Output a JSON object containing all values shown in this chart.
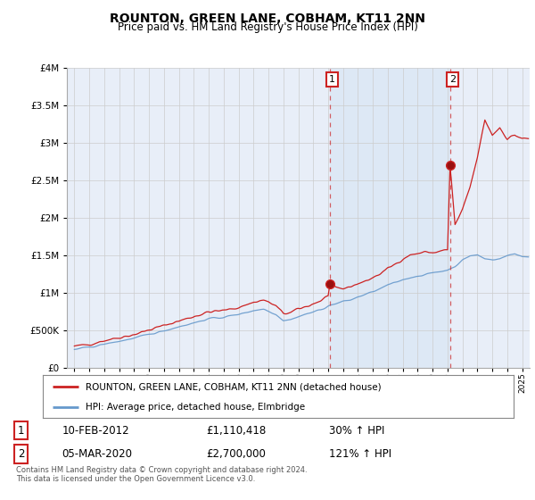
{
  "title": "ROUNTON, GREEN LANE, COBHAM, KT11 2NN",
  "subtitle": "Price paid vs. HM Land Registry's House Price Index (HPI)",
  "red_label": "ROUNTON, GREEN LANE, COBHAM, KT11 2NN (detached house)",
  "blue_label": "HPI: Average price, detached house, Elmbridge",
  "point1_date": "10-FEB-2012",
  "point1_price": "£1,110,418",
  "point1_hpi": "30% ↑ HPI",
  "point1_year": 2012.12,
  "point2_date": "05-MAR-2020",
  "point2_price": "£2,700,000",
  "point2_hpi": "121% ↑ HPI",
  "point2_year": 2020.17,
  "footer": "Contains HM Land Registry data © Crown copyright and database right 2024.\nThis data is licensed under the Open Government Licence v3.0.",
  "red_color": "#cc2222",
  "blue_color": "#6699cc",
  "highlight_color": "#dde8f5",
  "grid_color": "#cccccc",
  "bg_color": "#e8eef8",
  "plot_bg": "#ffffff",
  "ylim_max": 4000000,
  "xlim_start": 1994.5,
  "xlim_end": 2025.5
}
